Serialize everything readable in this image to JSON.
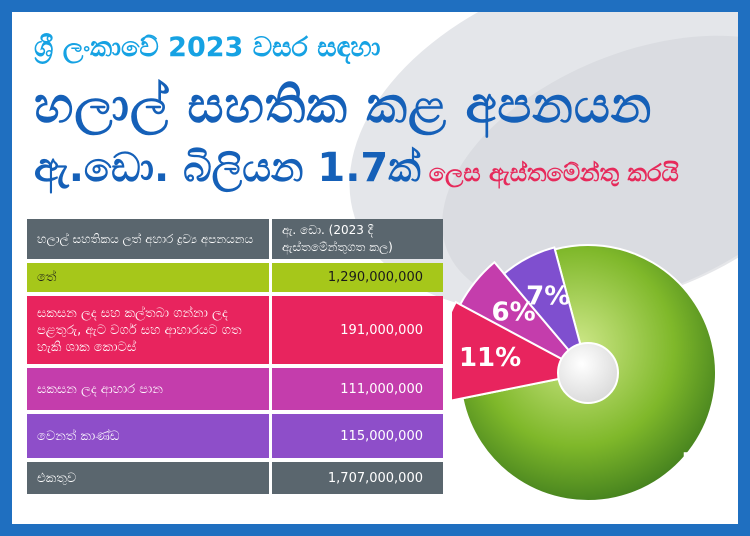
{
  "header": {
    "line1": "ශ්‍රී ලංකාවේ 2023 වසර සඳහා",
    "line2": "හලාල් සහතික කළ අපනයන",
    "line3_big": "ඇ.ඩො. බිලියන 1.7ක්",
    "line3_small": "ලෙස ඇස්තමේන්තු කරයි"
  },
  "table": {
    "col1_header": "හලාල් සහතිකය ලත් අහාර ද්‍රව්‍ය අපනයනය",
    "col2_header": "ඇ. ඩො. (2023 දී ඇස්තමේන්තුගත කල)",
    "rows": [
      {
        "label": "තේ",
        "value": "1,290,000,000"
      },
      {
        "label": "සකසන ලද සහ කල්තබා ගන්නා ලද පළතුරු, ඇට වර්ග සහ ආහාරයට ගත හැකි ශාක කොටස්",
        "value": "191,000,000"
      },
      {
        "label": "සකසන ලද ආහාර පාන",
        "value": "111,000,000"
      },
      {
        "label": "වෙනත් කාණ්ඩ",
        "value": "115,000,000"
      }
    ],
    "total_label": "එකතුව",
    "total_value": "1,707,000,000"
  },
  "chart_data": {
    "type": "pie",
    "slices": [
      {
        "value": 76,
        "label": "76%",
        "color": "#7fb82a"
      },
      {
        "value": 11,
        "label": "11%",
        "color": "#e8245e"
      },
      {
        "value": 6,
        "label": "6%",
        "color": "#c43dac"
      },
      {
        "value": 7,
        "label": "7%",
        "color": "#7f4fcf"
      }
    ]
  }
}
